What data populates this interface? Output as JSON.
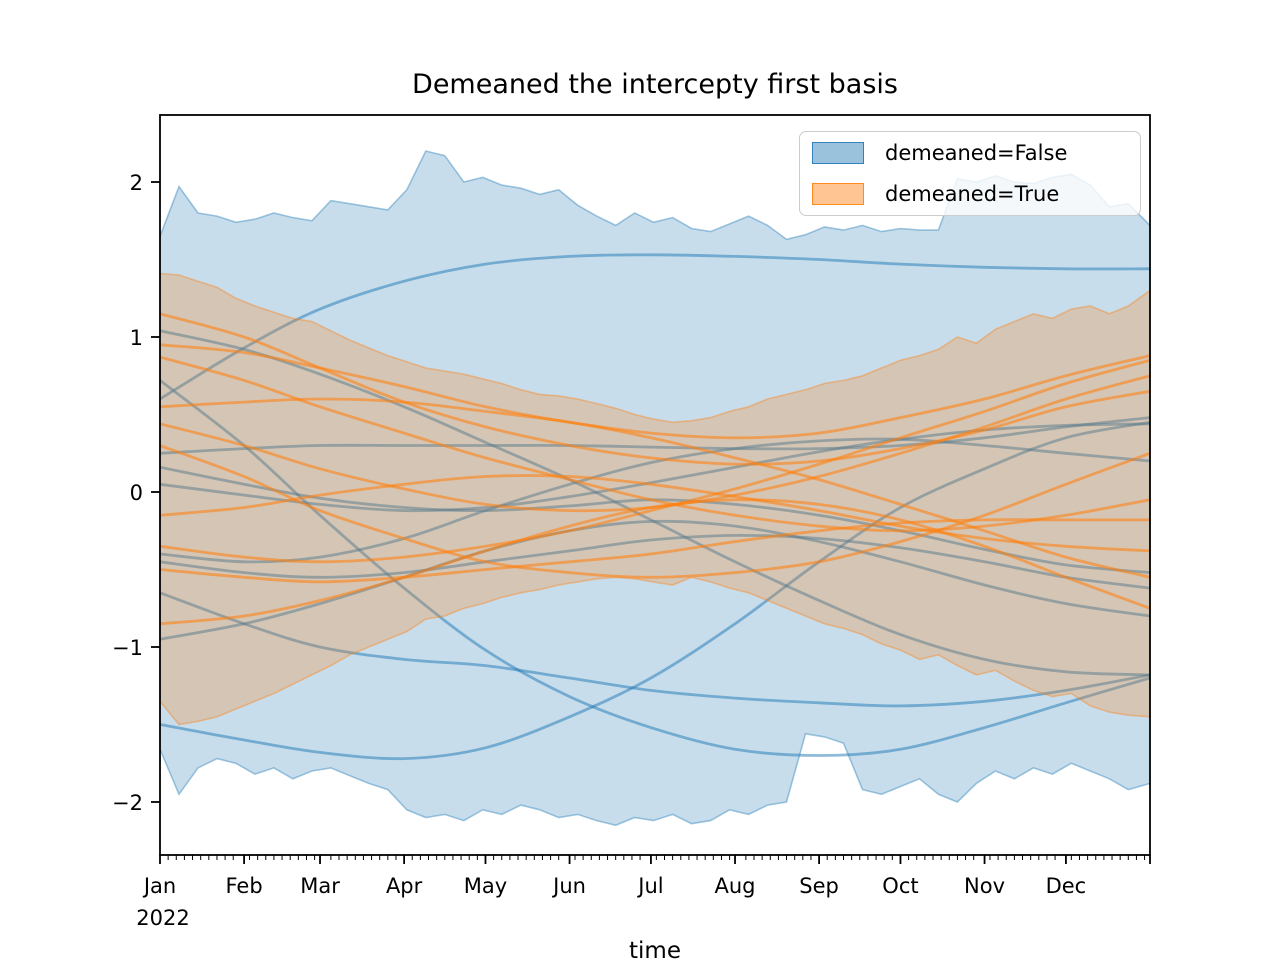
{
  "title": "Demeaned the intercepty first basis",
  "xlabel": "time",
  "x_axis": {
    "months": [
      "Jan",
      "Feb",
      "Mar",
      "Apr",
      "May",
      "Jun",
      "Jul",
      "Aug",
      "Sep",
      "Oct",
      "Nov",
      "Dec"
    ],
    "month_start_days": [
      0,
      31,
      59,
      90,
      120,
      151,
      181,
      212,
      243,
      273,
      304,
      334
    ],
    "year_label": "2022",
    "range_days": [
      0,
      365
    ],
    "minor_tick_every_days": 3
  },
  "y_axis": {
    "ticks": [
      {
        "label": "2",
        "value": 2
      },
      {
        "label": "1",
        "value": 1
      },
      {
        "label": "0",
        "value": 0
      },
      {
        "label": "−1",
        "value": -1
      },
      {
        "label": "−2",
        "value": -2
      }
    ],
    "range": [
      -2.34,
      2.43
    ]
  },
  "legend": {
    "items": [
      {
        "label": "demeaned=False",
        "color": "#1f77b4"
      },
      {
        "label": "demeaned=True",
        "color": "#ff7f0e"
      }
    ]
  },
  "colors": {
    "blue": "#1f77b4",
    "orange": "#ff7f0e",
    "fill_alpha": 0.25,
    "band_edge_alpha": 0.4,
    "line_alpha_blue": 0.5,
    "line_alpha_orange": 0.58,
    "spine": "#000000"
  },
  "chart_data": {
    "type": "line",
    "x_unit": "day_of_year_2022",
    "band_x_days": [
      0,
      7,
      14,
      21,
      28,
      35,
      42,
      49,
      56,
      63,
      70,
      77,
      84,
      91,
      98,
      105,
      112,
      119,
      126,
      133,
      140,
      147,
      154,
      161,
      168,
      175,
      182,
      189,
      196,
      203,
      210,
      217,
      224,
      231,
      238,
      245,
      252,
      259,
      266,
      273,
      280,
      287,
      294,
      301,
      308,
      315,
      322,
      329,
      336,
      343,
      350,
      357,
      365
    ],
    "line_x_days": [
      0,
      31,
      59,
      90,
      120,
      151,
      181,
      212,
      243,
      273,
      304,
      334,
      365
    ],
    "groups": [
      {
        "name": "demeaned=False",
        "color": "#1f77b4",
        "band_upper": [
          1.65,
          1.97,
          1.8,
          1.78,
          1.74,
          1.76,
          1.8,
          1.77,
          1.75,
          1.88,
          1.86,
          1.84,
          1.82,
          1.95,
          2.2,
          2.17,
          2.0,
          2.03,
          1.98,
          1.96,
          1.92,
          1.95,
          1.85,
          1.78,
          1.72,
          1.8,
          1.74,
          1.77,
          1.7,
          1.68,
          1.73,
          1.78,
          1.72,
          1.63,
          1.66,
          1.71,
          1.69,
          1.72,
          1.68,
          1.7,
          1.69,
          1.69,
          2.02,
          2.0,
          2.04,
          2.0,
          1.99,
          2.03,
          2.05,
          1.98,
          1.84,
          1.86,
          1.72
        ],
        "band_lower": [
          -1.66,
          -1.95,
          -1.78,
          -1.72,
          -1.75,
          -1.82,
          -1.78,
          -1.85,
          -1.8,
          -1.78,
          -1.83,
          -1.88,
          -1.92,
          -2.05,
          -2.1,
          -2.08,
          -2.12,
          -2.05,
          -2.08,
          -2.02,
          -2.05,
          -2.1,
          -2.08,
          -2.12,
          -2.15,
          -2.1,
          -2.12,
          -2.08,
          -2.14,
          -2.12,
          -2.05,
          -2.08,
          -2.02,
          -2.0,
          -1.56,
          -1.58,
          -1.62,
          -1.92,
          -1.95,
          -1.9,
          -1.85,
          -1.95,
          -2.0,
          -1.88,
          -1.8,
          -1.85,
          -1.78,
          -1.82,
          -1.75,
          -1.8,
          -1.85,
          -1.92,
          -1.88
        ],
        "lines": [
          [
            0.6,
            0.93,
            1.18,
            1.36,
            1.47,
            1.52,
            1.53,
            1.52,
            1.5,
            1.47,
            1.45,
            1.44,
            1.44
          ],
          [
            0.72,
            0.3,
            -0.15,
            -0.62,
            -1.02,
            -1.32,
            -1.52,
            -1.66,
            -1.7,
            -1.66,
            -1.52,
            -1.36,
            -1.2
          ],
          [
            -1.5,
            -1.6,
            -1.68,
            -1.72,
            -1.65,
            -1.45,
            -1.2,
            -0.85,
            -0.45,
            -0.1,
            0.15,
            0.35,
            0.45
          ],
          [
            -0.65,
            -0.85,
            -1.0,
            -1.08,
            -1.12,
            -1.2,
            -1.28,
            -1.33,
            -1.36,
            -1.38,
            -1.35,
            -1.28,
            -1.18
          ],
          [
            0.05,
            -0.02,
            -0.08,
            -0.12,
            -0.1,
            -0.03,
            0.06,
            0.16,
            0.26,
            0.34,
            0.4,
            0.43,
            0.44
          ],
          [
            0.25,
            0.28,
            0.3,
            0.3,
            0.3,
            0.3,
            0.29,
            0.28,
            0.28,
            0.3,
            0.35,
            0.42,
            0.48
          ],
          [
            0.16,
            0.05,
            -0.04,
            -0.1,
            -0.12,
            -0.09,
            -0.05,
            -0.08,
            -0.15,
            -0.25,
            -0.37,
            -0.47,
            -0.52
          ],
          [
            -0.4,
            -0.45,
            -0.42,
            -0.3,
            -0.12,
            0.05,
            0.19,
            0.28,
            0.33,
            0.34,
            0.3,
            0.25,
            0.2
          ],
          [
            -0.45,
            -0.52,
            -0.55,
            -0.52,
            -0.45,
            -0.38,
            -0.31,
            -0.28,
            -0.3,
            -0.36,
            -0.45,
            -0.55,
            -0.62
          ],
          [
            -0.95,
            -0.85,
            -0.72,
            -0.55,
            -0.38,
            -0.25,
            -0.19,
            -0.22,
            -0.32,
            -0.45,
            -0.6,
            -0.72,
            -0.8
          ],
          [
            1.04,
            0.92,
            0.76,
            0.55,
            0.32,
            0.08,
            -0.18,
            -0.45,
            -0.7,
            -0.92,
            -1.08,
            -1.16,
            -1.18
          ]
        ]
      },
      {
        "name": "demeaned=True",
        "color": "#ff7f0e",
        "band_upper": [
          1.41,
          1.4,
          1.36,
          1.32,
          1.25,
          1.2,
          1.16,
          1.12,
          1.1,
          1.04,
          0.98,
          0.93,
          0.88,
          0.84,
          0.8,
          0.78,
          0.76,
          0.73,
          0.7,
          0.66,
          0.63,
          0.62,
          0.6,
          0.57,
          0.54,
          0.5,
          0.47,
          0.45,
          0.46,
          0.48,
          0.52,
          0.55,
          0.6,
          0.63,
          0.66,
          0.7,
          0.72,
          0.75,
          0.8,
          0.85,
          0.88,
          0.92,
          1.0,
          0.96,
          1.05,
          1.1,
          1.15,
          1.12,
          1.18,
          1.2,
          1.15,
          1.2,
          1.3
        ],
        "band_lower": [
          -1.35,
          -1.5,
          -1.48,
          -1.45,
          -1.4,
          -1.35,
          -1.3,
          -1.24,
          -1.18,
          -1.12,
          -1.05,
          -1.0,
          -0.95,
          -0.9,
          -0.82,
          -0.8,
          -0.75,
          -0.72,
          -0.68,
          -0.65,
          -0.63,
          -0.6,
          -0.58,
          -0.56,
          -0.55,
          -0.56,
          -0.58,
          -0.6,
          -0.55,
          -0.58,
          -0.62,
          -0.65,
          -0.7,
          -0.75,
          -0.8,
          -0.85,
          -0.88,
          -0.92,
          -0.98,
          -1.02,
          -1.08,
          -1.05,
          -1.12,
          -1.18,
          -1.15,
          -1.22,
          -1.28,
          -1.32,
          -1.3,
          -1.38,
          -1.42,
          -1.44,
          -1.45
        ],
        "lines": [
          [
            1.15,
            1.0,
            0.8,
            0.58,
            0.42,
            0.3,
            0.22,
            0.18,
            0.2,
            0.28,
            0.4,
            0.55,
            0.65
          ],
          [
            0.95,
            0.9,
            0.8,
            0.68,
            0.55,
            0.45,
            0.38,
            0.35,
            0.38,
            0.48,
            0.6,
            0.75,
            0.88
          ],
          [
            0.87,
            0.72,
            0.55,
            0.38,
            0.22,
            0.08,
            -0.05,
            -0.15,
            -0.22,
            -0.25,
            -0.22,
            -0.15,
            -0.05
          ],
          [
            0.55,
            0.58,
            0.6,
            0.58,
            0.52,
            0.45,
            0.35,
            0.22,
            0.08,
            -0.08,
            -0.25,
            -0.42,
            -0.55
          ],
          [
            0.44,
            0.3,
            0.15,
            0.02,
            -0.08,
            -0.12,
            -0.1,
            -0.02,
            0.1,
            0.25,
            0.42,
            0.6,
            0.75
          ],
          [
            -0.15,
            -0.1,
            -0.02,
            0.05,
            0.1,
            0.1,
            0.05,
            -0.03,
            -0.12,
            -0.22,
            -0.3,
            -0.35,
            -0.38
          ],
          [
            -0.35,
            -0.42,
            -0.45,
            -0.42,
            -0.35,
            -0.25,
            -0.12,
            0.02,
            0.18,
            0.35,
            0.52,
            0.7,
            0.85
          ],
          [
            -0.5,
            -0.55,
            -0.58,
            -0.55,
            -0.5,
            -0.45,
            -0.4,
            -0.32,
            -0.25,
            -0.2,
            -0.18,
            -0.18,
            -0.18
          ],
          [
            -0.85,
            -0.8,
            -0.7,
            -0.55,
            -0.38,
            -0.22,
            -0.1,
            -0.05,
            -0.08,
            -0.18,
            -0.35,
            -0.55,
            -0.75
          ],
          [
            0.3,
            0.1,
            -0.12,
            -0.3,
            -0.45,
            -0.52,
            -0.55,
            -0.52,
            -0.45,
            -0.32,
            -0.15,
            0.05,
            0.25
          ]
        ]
      }
    ]
  }
}
